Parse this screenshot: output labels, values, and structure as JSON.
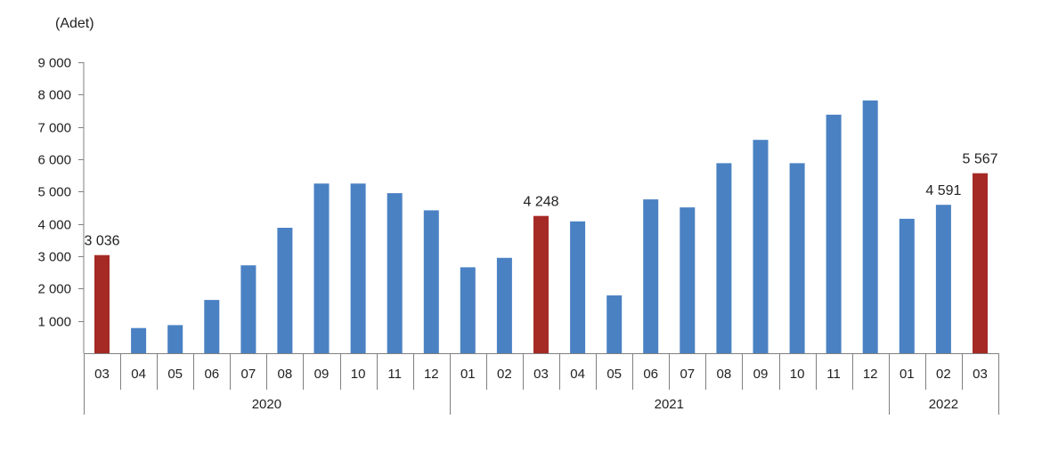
{
  "chart_data": {
    "type": "bar",
    "unit_label": "(Adet)",
    "ylim": [
      0,
      9000
    ],
    "yticks": [
      "9 000",
      "8 000",
      "7 000",
      "6 000",
      "5 000",
      "4 000",
      "3 000",
      "2 000",
      "1 000"
    ],
    "ytick_values": [
      9000,
      8000,
      7000,
      6000,
      5000,
      4000,
      3000,
      2000,
      1000
    ],
    "grid": false,
    "colors": {
      "default": "#4a81c3",
      "highlight": "#a52a26"
    },
    "categories": [
      "03",
      "04",
      "05",
      "06",
      "07",
      "08",
      "09",
      "10",
      "11",
      "12",
      "01",
      "02",
      "03",
      "04",
      "05",
      "06",
      "07",
      "08",
      "09",
      "10",
      "11",
      "12",
      "01",
      "02",
      "03"
    ],
    "years": [
      {
        "label": "2020",
        "count": 10
      },
      {
        "label": "2021",
        "count": 12
      },
      {
        "label": "2022",
        "count": 3
      }
    ],
    "values": [
      3036,
      780,
      870,
      1650,
      2720,
      3880,
      5250,
      5250,
      4950,
      4420,
      2660,
      2950,
      4248,
      4080,
      1790,
      4760,
      4510,
      5880,
      6600,
      5880,
      7380,
      7820,
      4160,
      4591,
      5567
    ],
    "highlight": [
      true,
      false,
      false,
      false,
      false,
      false,
      false,
      false,
      false,
      false,
      false,
      false,
      true,
      false,
      false,
      false,
      false,
      false,
      false,
      false,
      false,
      false,
      false,
      false,
      true
    ],
    "data_labels": [
      "3 036",
      null,
      null,
      null,
      null,
      null,
      null,
      null,
      null,
      null,
      null,
      null,
      "4 248",
      null,
      null,
      null,
      null,
      null,
      null,
      null,
      null,
      null,
      null,
      "4 591",
      "5 567"
    ]
  }
}
